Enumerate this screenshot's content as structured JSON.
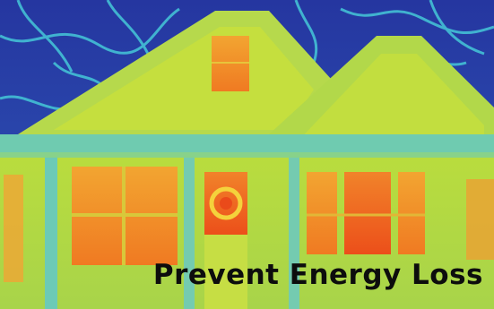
{
  "caption": "Prevent Energy Loss",
  "palette": {
    "sky": "#2a3fa8",
    "sky_glow": "#3fc6d8",
    "house_cool": "#9fd84a",
    "house_mid": "#c9e03a",
    "roof": "#b4d850",
    "trim": "#5fc9b8",
    "warm": "#f39a2b",
    "hot": "#ef5a1c"
  }
}
